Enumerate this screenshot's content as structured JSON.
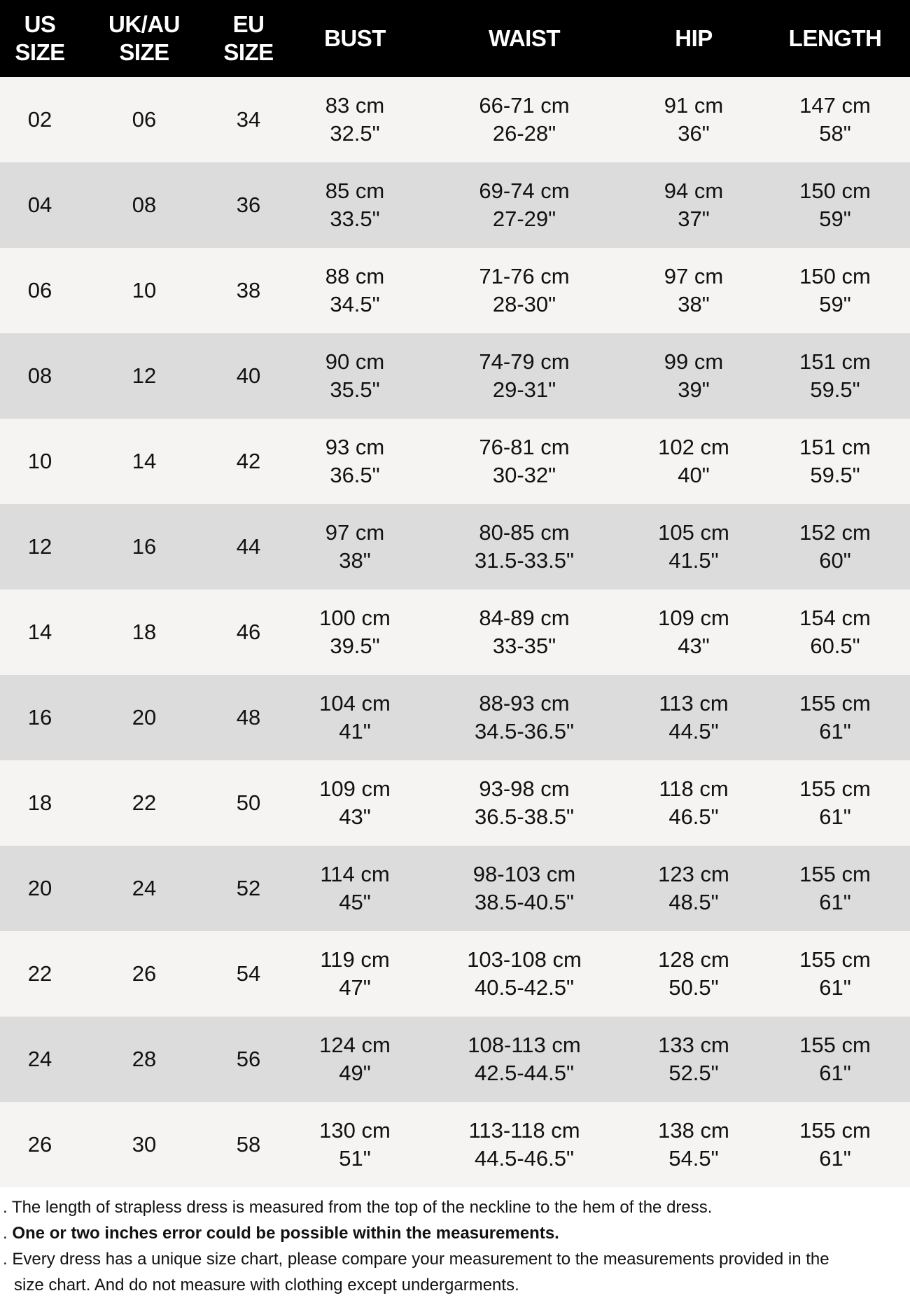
{
  "headers": [
    [
      "US",
      "SIZE"
    ],
    [
      "UK/AU",
      "SIZE"
    ],
    [
      "EU",
      "SIZE"
    ],
    [
      "BUST"
    ],
    [
      "WAIST"
    ],
    [
      "HIP"
    ],
    [
      "LENGTH"
    ]
  ],
  "rows": [
    [
      "02",
      "06",
      "34",
      [
        "83 cm",
        "32.5\""
      ],
      [
        "66-71 cm",
        "26-28\""
      ],
      [
        "91 cm",
        "36\""
      ],
      [
        "147 cm",
        "58\""
      ]
    ],
    [
      "04",
      "08",
      "36",
      [
        "85 cm",
        "33.5\""
      ],
      [
        "69-74 cm",
        "27-29\""
      ],
      [
        "94 cm",
        "37\""
      ],
      [
        "150 cm",
        "59\""
      ]
    ],
    [
      "06",
      "10",
      "38",
      [
        "88 cm",
        "34.5\""
      ],
      [
        "71-76 cm",
        "28-30\""
      ],
      [
        "97 cm",
        "38\""
      ],
      [
        "150 cm",
        "59\""
      ]
    ],
    [
      "08",
      "12",
      "40",
      [
        "90 cm",
        "35.5\""
      ],
      [
        "74-79 cm",
        "29-31\""
      ],
      [
        "99 cm",
        "39\""
      ],
      [
        "151 cm",
        "59.5\""
      ]
    ],
    [
      "10",
      "14",
      "42",
      [
        "93 cm",
        "36.5\""
      ],
      [
        "76-81 cm",
        "30-32\""
      ],
      [
        "102 cm",
        "40\""
      ],
      [
        "151 cm",
        "59.5\""
      ]
    ],
    [
      "12",
      "16",
      "44",
      [
        "97 cm",
        "38\""
      ],
      [
        "80-85 cm",
        "31.5-33.5\""
      ],
      [
        "105 cm",
        "41.5\""
      ],
      [
        "152 cm",
        "60\""
      ]
    ],
    [
      "14",
      "18",
      "46",
      [
        "100 cm",
        "39.5\""
      ],
      [
        "84-89 cm",
        "33-35\""
      ],
      [
        "109 cm",
        "43\""
      ],
      [
        "154 cm",
        "60.5\""
      ]
    ],
    [
      "16",
      "20",
      "48",
      [
        "104 cm",
        "41\""
      ],
      [
        "88-93 cm",
        "34.5-36.5\""
      ],
      [
        "113 cm",
        "44.5\""
      ],
      [
        "155 cm",
        "61\""
      ]
    ],
    [
      "18",
      "22",
      "50",
      [
        "109 cm",
        "43\""
      ],
      [
        "93-98 cm",
        "36.5-38.5\""
      ],
      [
        "118 cm",
        "46.5\""
      ],
      [
        "155 cm",
        "61\""
      ]
    ],
    [
      "20",
      "24",
      "52",
      [
        "114 cm",
        "45\""
      ],
      [
        "98-103 cm",
        "38.5-40.5\""
      ],
      [
        "123 cm",
        "48.5\""
      ],
      [
        "155 cm",
        "61\""
      ]
    ],
    [
      "22",
      "26",
      "54",
      [
        "119 cm",
        "47\""
      ],
      [
        "103-108 cm",
        "40.5-42.5\""
      ],
      [
        "128 cm",
        "50.5\""
      ],
      [
        "155 cm",
        "61\""
      ]
    ],
    [
      "24",
      "28",
      "56",
      [
        "124 cm",
        "49\""
      ],
      [
        "108-113 cm",
        "42.5-44.5\""
      ],
      [
        "133 cm",
        "52.5\""
      ],
      [
        "155 cm",
        "61\""
      ]
    ],
    [
      "26",
      "30",
      "58",
      [
        "130 cm",
        "51\""
      ],
      [
        "113-118 cm",
        "44.5-46.5\""
      ],
      [
        "138 cm",
        "54.5\""
      ],
      [
        "155 cm",
        "61\""
      ]
    ]
  ],
  "notes": {
    "bullet": ".",
    "line1": "The length of strapless dress is measured from the top of the neckline to the hem of the dress.",
    "line2": "One or two inches error could be possible within the measurements.",
    "line3a": "Every dress has a unique size chart, please compare your measurement to the measurements provided in the",
    "line3b": "size chart. And do not measure with clothing except undergarments."
  },
  "colors": {
    "header_bg": "#000000",
    "row_light": "#f5f4f2",
    "row_dark": "#dcdcdc"
  }
}
